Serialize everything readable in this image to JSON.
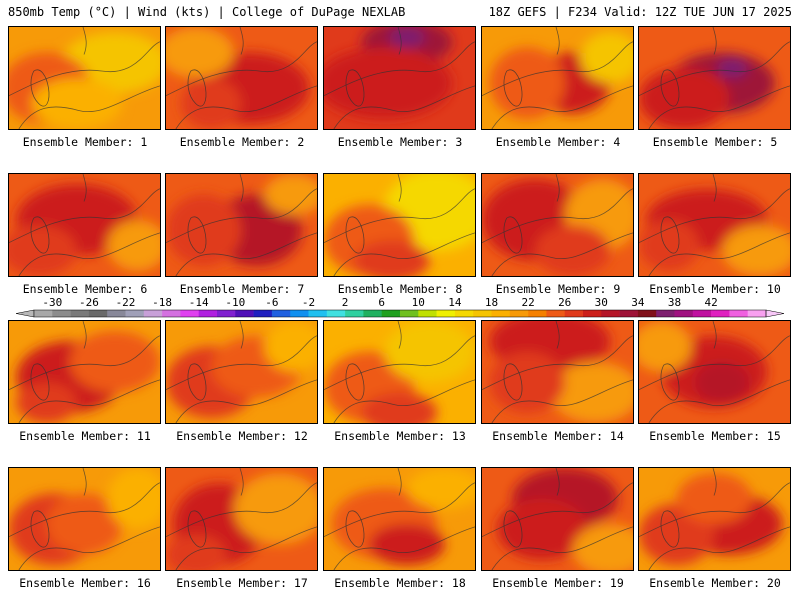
{
  "header": {
    "left": "850mb Temp (°C) | Wind (kts) | College of DuPage NEXLAB",
    "right": "18Z GEFS | F234 Valid: 12Z TUE JUN 17 2025"
  },
  "caption_prefix": "Ensemble Member:",
  "members": [
    {
      "label": "Ensemble Member: 1",
      "base": "#f79a08",
      "blobs": [
        [
          "#f5c400",
          0.7,
          0.35,
          0.35,
          0.3
        ],
        [
          "#ee5a16",
          0.25,
          0.6,
          0.3,
          0.35
        ],
        [
          "#fbb000",
          0.45,
          0.75,
          0.3,
          0.25
        ]
      ]
    },
    {
      "label": "Ensemble Member: 2",
      "base": "#ee5a16",
      "blobs": [
        [
          "#cc1f1a",
          0.55,
          0.6,
          0.4,
          0.35
        ],
        [
          "#f79a08",
          0.2,
          0.25,
          0.25,
          0.25
        ],
        [
          "#e03a1b",
          0.3,
          0.75,
          0.2,
          0.25
        ]
      ]
    },
    {
      "label": "Ensemble Member: 3",
      "base": "#e03a1b",
      "blobs": [
        [
          "#9e1237",
          0.55,
          0.15,
          0.3,
          0.22
        ],
        [
          "#cc1f1a",
          0.4,
          0.55,
          0.45,
          0.35
        ],
        [
          "#7e1f6f",
          0.55,
          0.1,
          0.12,
          0.1
        ]
      ]
    },
    {
      "label": "Ensemble Member: 4",
      "base": "#f79a08",
      "blobs": [
        [
          "#cc1f1a",
          0.6,
          0.55,
          0.25,
          0.3
        ],
        [
          "#ee5a16",
          0.3,
          0.55,
          0.25,
          0.35
        ],
        [
          "#f5c400",
          0.85,
          0.3,
          0.2,
          0.25
        ]
      ]
    },
    {
      "label": "Ensemble Member: 5",
      "base": "#ee5a16",
      "blobs": [
        [
          "#9e1237",
          0.55,
          0.55,
          0.35,
          0.3
        ],
        [
          "#cc1f1a",
          0.3,
          0.7,
          0.3,
          0.3
        ],
        [
          "#7e1f6f",
          0.62,
          0.4,
          0.1,
          0.1
        ]
      ]
    },
    {
      "label": "Ensemble Member: 6",
      "base": "#ee5a16",
      "blobs": [
        [
          "#cc1f1a",
          0.45,
          0.45,
          0.4,
          0.35
        ],
        [
          "#e03a1b",
          0.2,
          0.75,
          0.25,
          0.25
        ],
        [
          "#f79a08",
          0.85,
          0.7,
          0.2,
          0.25
        ]
      ]
    },
    {
      "label": "Ensemble Member: 7",
      "base": "#ee5a16",
      "blobs": [
        [
          "#b51628",
          0.6,
          0.55,
          0.3,
          0.35
        ],
        [
          "#e03a1b",
          0.25,
          0.55,
          0.25,
          0.35
        ],
        [
          "#f79a08",
          0.85,
          0.2,
          0.2,
          0.2
        ]
      ]
    },
    {
      "label": "Ensemble Member: 8",
      "base": "#fbb000",
      "blobs": [
        [
          "#f5d800",
          0.75,
          0.35,
          0.35,
          0.4
        ],
        [
          "#ee5a16",
          0.3,
          0.65,
          0.3,
          0.35
        ],
        [
          "#e03a1b",
          0.45,
          0.85,
          0.25,
          0.2
        ]
      ]
    },
    {
      "label": "Ensemble Member: 9",
      "base": "#ee5a16",
      "blobs": [
        [
          "#cc1f1a",
          0.35,
          0.45,
          0.35,
          0.4
        ],
        [
          "#f79a08",
          0.8,
          0.4,
          0.25,
          0.35
        ],
        [
          "#e03a1b",
          0.6,
          0.75,
          0.25,
          0.25
        ]
      ]
    },
    {
      "label": "Ensemble Member: 10",
      "base": "#ee5a16",
      "blobs": [
        [
          "#cc1f1a",
          0.45,
          0.45,
          0.4,
          0.3
        ],
        [
          "#f79a08",
          0.8,
          0.75,
          0.25,
          0.25
        ],
        [
          "#e03a1b",
          0.2,
          0.7,
          0.2,
          0.25
        ]
      ]
    },
    {
      "label": "Ensemble Member: 11",
      "base": "#f79a08",
      "blobs": [
        [
          "#cc1f1a",
          0.4,
          0.55,
          0.35,
          0.35
        ],
        [
          "#ee5a16",
          0.7,
          0.4,
          0.3,
          0.3
        ],
        [
          "#e03a1b",
          0.25,
          0.8,
          0.2,
          0.2
        ]
      ]
    },
    {
      "label": "Ensemble Member: 12",
      "base": "#f79a08",
      "blobs": [
        [
          "#e03a1b",
          0.3,
          0.6,
          0.3,
          0.35
        ],
        [
          "#ee5a16",
          0.6,
          0.45,
          0.3,
          0.3
        ],
        [
          "#fbb000",
          0.85,
          0.25,
          0.2,
          0.25
        ]
      ]
    },
    {
      "label": "Ensemble Member: 13",
      "base": "#fbb000",
      "blobs": [
        [
          "#ee5a16",
          0.3,
          0.65,
          0.3,
          0.35
        ],
        [
          "#f5c400",
          0.7,
          0.3,
          0.3,
          0.3
        ],
        [
          "#e03a1b",
          0.5,
          0.9,
          0.25,
          0.2
        ]
      ]
    },
    {
      "label": "Ensemble Member: 14",
      "base": "#ee5a16",
      "blobs": [
        [
          "#cc1f1a",
          0.45,
          0.2,
          0.4,
          0.3
        ],
        [
          "#f79a08",
          0.75,
          0.7,
          0.3,
          0.3
        ],
        [
          "#e03a1b",
          0.3,
          0.6,
          0.25,
          0.3
        ]
      ]
    },
    {
      "label": "Ensemble Member: 15",
      "base": "#ee5a16",
      "blobs": [
        [
          "#cc1f1a",
          0.5,
          0.5,
          0.35,
          0.35
        ],
        [
          "#b51628",
          0.55,
          0.6,
          0.18,
          0.2
        ],
        [
          "#f79a08",
          0.15,
          0.25,
          0.2,
          0.25
        ]
      ]
    },
    {
      "label": "Ensemble Member: 16",
      "base": "#f79a08",
      "blobs": [
        [
          "#e03a1b",
          0.3,
          0.6,
          0.3,
          0.35
        ],
        [
          "#ee5a16",
          0.5,
          0.55,
          0.25,
          0.3
        ],
        [
          "#fbb000",
          0.85,
          0.3,
          0.2,
          0.3
        ]
      ]
    },
    {
      "label": "Ensemble Member: 17",
      "base": "#ee5a16",
      "blobs": [
        [
          "#cc1f1a",
          0.35,
          0.55,
          0.3,
          0.4
        ],
        [
          "#f79a08",
          0.75,
          0.4,
          0.3,
          0.35
        ],
        [
          "#e03a1b",
          0.2,
          0.85,
          0.2,
          0.2
        ]
      ]
    },
    {
      "label": "Ensemble Member: 18",
      "base": "#f79a08",
      "blobs": [
        [
          "#ee5a16",
          0.4,
          0.55,
          0.35,
          0.35
        ],
        [
          "#cc1f1a",
          0.55,
          0.75,
          0.25,
          0.2
        ],
        [
          "#fbb000",
          0.8,
          0.2,
          0.25,
          0.2
        ]
      ]
    },
    {
      "label": "Ensemble Member: 19",
      "base": "#ee5a16",
      "blobs": [
        [
          "#b51628",
          0.55,
          0.3,
          0.35,
          0.3
        ],
        [
          "#cc1f1a",
          0.4,
          0.6,
          0.3,
          0.3
        ],
        [
          "#f79a08",
          0.85,
          0.8,
          0.25,
          0.25
        ]
      ]
    },
    {
      "label": "Ensemble Member: 20",
      "base": "#f79a08",
      "blobs": [
        [
          "#cc1f1a",
          0.6,
          0.55,
          0.35,
          0.3
        ],
        [
          "#e03a1b",
          0.25,
          0.65,
          0.25,
          0.3
        ],
        [
          "#ee5a16",
          0.5,
          0.3,
          0.25,
          0.25
        ]
      ]
    }
  ],
  "colorbar": {
    "labels": [
      "-30",
      "-26",
      "-22",
      "-18",
      "-14",
      "-10",
      "-6",
      "-2",
      "2",
      "6",
      "10",
      "14",
      "18",
      "22",
      "26",
      "30",
      "34",
      "38",
      "42"
    ],
    "colors": [
      "#a8a8a8",
      "#8c8c8c",
      "#7a7a7a",
      "#6a6a6a",
      "#888899",
      "#a0a0b8",
      "#c8a0d8",
      "#d470e0",
      "#e040f0",
      "#b020e0",
      "#8020d0",
      "#5010b8",
      "#2020c0",
      "#2060e0",
      "#1090f0",
      "#20c0f0",
      "#40e0e0",
      "#30d0a0",
      "#20b060",
      "#20a020",
      "#70c020",
      "#c0e000",
      "#f0f000",
      "#f5d800",
      "#f5c400",
      "#fbb000",
      "#f79a08",
      "#f58000",
      "#ee5a16",
      "#e03a1b",
      "#cc1f1a",
      "#b51628",
      "#9e1237",
      "#80101a",
      "#7e1f6f",
      "#a01080",
      "#c010a0",
      "#e020c0",
      "#f060e0",
      "#f8a0f0"
    ]
  }
}
